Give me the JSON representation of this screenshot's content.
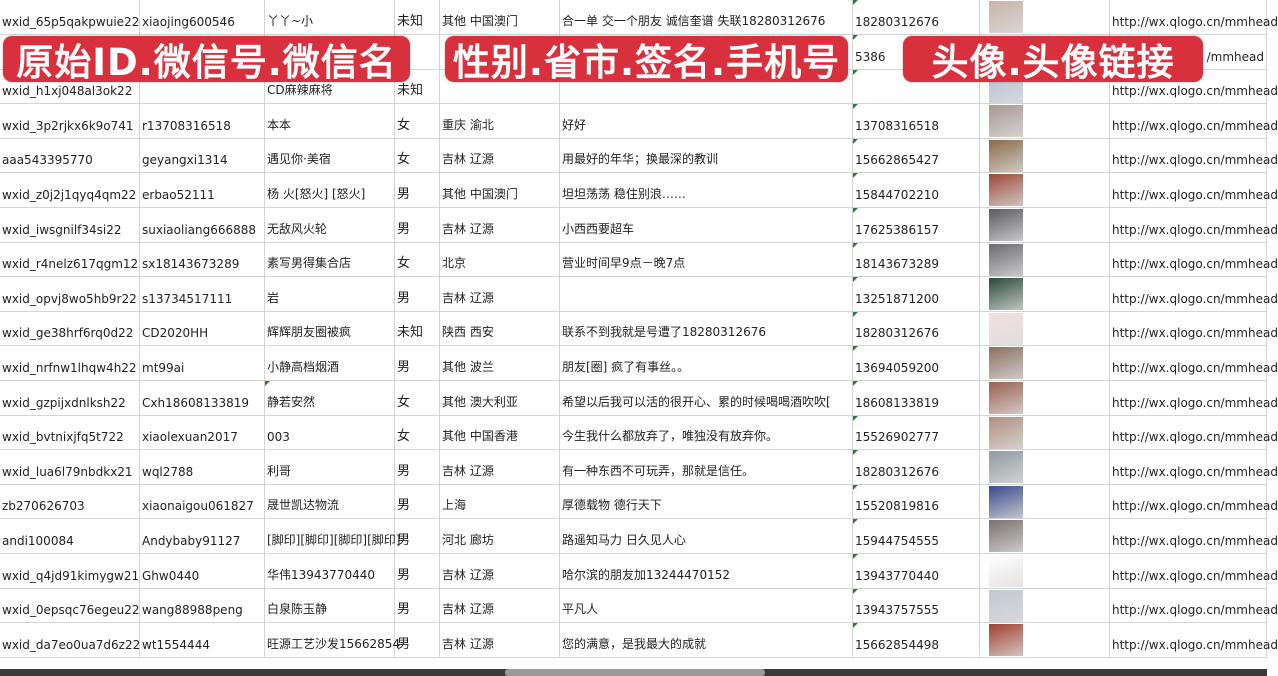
{
  "banners": [
    "原始ID.微信号.微信名",
    "性别.省市.签名.手机号",
    "头像.头像链接"
  ],
  "rows": [
    {
      "id": "wxid_65p5qakpwuie22",
      "wechat": "xiaojing600546",
      "name": "丫丫~小",
      "gender": "未知",
      "region": "其他 中国澳门",
      "signature": "合一单 交一个朋友 诚信奎谱 失联18280312676",
      "phone": "18280312676",
      "avatar_color": "#c9b3a8",
      "link": "http://wx.qlogo.cn/mmhead"
    },
    {
      "id": "",
      "wechat": "",
      "name": "",
      "gender": "",
      "region": "",
      "signature": "",
      "phone": "5386",
      "avatar_color": "#4a5a8a",
      "link": "/mmhead"
    },
    {
      "id": "wxid_h1xj048al3ok22",
      "wechat": "",
      "name": "CD麻辣麻将",
      "gender": "未知",
      "region": "",
      "signature": "",
      "phone": "",
      "avatar_color": "#b8c0d0",
      "link": "http://wx.qlogo.cn/mmhead"
    },
    {
      "id": "wxid_3p2rjkx6k9o741",
      "wechat": "r13708316518",
      "name": "本本",
      "gender": "女",
      "region": "重庆 渝北",
      "signature": "好好",
      "phone": "13708316518",
      "avatar_color": "#a89890",
      "link": "http://wx.qlogo.cn/mmhead"
    },
    {
      "id": "aaa543395770",
      "wechat": "geyangxi1314",
      "name": "遇见你·美宿",
      "gender": "女",
      "region": "吉林 辽源",
      "signature": "用最好的年华；换最深的教训",
      "phone": "15662865427",
      "avatar_color": "#8a6a4a",
      "link": "http://wx.qlogo.cn/mmhead"
    },
    {
      "id": "wxid_z0j2j1qyq4qm22",
      "wechat": "erbao52111",
      "name": "杨 火[怒火] [怒火]",
      "gender": "男",
      "region": "其他 中国澳门",
      "signature": "坦坦荡荡 稳住别浪……",
      "phone": "15844702210",
      "avatar_color": "#9a4a3a",
      "link": "http://wx.qlogo.cn/mmhead"
    },
    {
      "id": "wxid_iwsgnilf34si22",
      "wechat": "suxiaoliang666888",
      "name": "无敌风火轮",
      "gender": "男",
      "region": "吉林 辽源",
      "signature": "小西西要超车",
      "phone": "17625386157",
      "avatar_color": "#5a5a60",
      "link": "http://wx.qlogo.cn/mmhead"
    },
    {
      "id": "wxid_r4nelz617qgm12",
      "wechat": "sx18143673289",
      "name": "素写男得集合店",
      "gender": "女",
      "region": "北京",
      "signature": "营业时间早9点－晚7点",
      "phone": "18143673289",
      "avatar_color": "#6a6a70",
      "link": "http://wx.qlogo.cn/mmhead"
    },
    {
      "id": "wxid_opvj8wo5hb9r22",
      "wechat": "s13734517111",
      "name": "岩",
      "gender": "男",
      "region": "吉林 辽源",
      "signature": "",
      "phone": "13251871200",
      "avatar_color": "#2a4a3a",
      "link": "http://wx.qlogo.cn/mmhead"
    },
    {
      "id": "wxid_ge38hrf6rq0d22",
      "wechat": "CD2020HH",
      "name": "辉辉朋友圈被疯",
      "gender": "未知",
      "region": "陕西 西安",
      "signature": "联系不到我就是号遭了18280312676",
      "phone": "18280312676",
      "avatar_color": "#f2e0e0",
      "link": "http://wx.qlogo.cn/mmhead"
    },
    {
      "id": "wxid_nrfnw1lhqw4h22",
      "wechat": "mt99ai",
      "name": "小静高档烟酒",
      "gender": "男",
      "region": "其他 波兰",
      "signature": "朋友[圈] 疯了有事丝。。",
      "phone": "13694059200",
      "avatar_color": "#8a7060",
      "link": "http://wx.qlogo.cn/mmhead"
    },
    {
      "id": "wxid_gzpijxdnlksh22",
      "wechat": "Cxh18608133819",
      "name": "静若安然",
      "gender": "女",
      "region": "其他 澳大利亚",
      "signature": "希望以后我可以活的很开心、累的时候喝喝酒吹吹[",
      "phone": "18608133819",
      "avatar_color": "#9a6050",
      "link": "http://wx.qlogo.cn/mmhead"
    },
    {
      "id": "wxid_bvtnixjfq5t722",
      "wechat": "xiaolexuan2017",
      "name": "003",
      "gender": "女",
      "region": "其他 中国香港",
      "signature": "今生我什么都放弃了，唯独没有放弃你。",
      "phone": "15526902777",
      "avatar_color": "#b09080",
      "link": "http://wx.qlogo.cn/mmhead"
    },
    {
      "id": "wxid_lua6l79nbdkx21",
      "wechat": "wql2788",
      "name": "利哥",
      "gender": "男",
      "region": "吉林 辽源",
      "signature": "有一种东西不可玩弄，那就是信任。",
      "phone": "18280312676",
      "avatar_color": "#909aa0",
      "link": "http://wx.qlogo.cn/mmhead"
    },
    {
      "id": "zb270626703",
      "wechat": "xiaonaigou061827",
      "name": "晟世凯达物流",
      "gender": "男",
      "region": "上海",
      "signature": "厚德载物 德行天下",
      "phone": "15520819816",
      "avatar_color": "#3a4a8a",
      "link": "http://wx.qlogo.cn/mmhead"
    },
    {
      "id": "andi100084",
      "wechat": "Andybaby91127",
      "name": "[脚印][脚印][脚印][脚印]",
      "gender": "男",
      "region": "河北 廊坊",
      "signature": "路遥知马力 日久见人心",
      "phone": "15944754555",
      "avatar_color": "#7a7070",
      "link": "http://wx.qlogo.cn/mmhead"
    },
    {
      "id": "wxid_q4jd91kimygw21",
      "wechat": "Ghw0440",
      "name": "华伟13943770440",
      "gender": "男",
      "region": "吉林 辽源",
      "signature": "哈尔滨的朋友加13244470152",
      "phone": "13943770440",
      "avatar_color": "#ffffff",
      "link": "http://wx.qlogo.cn/mmhead"
    },
    {
      "id": "wxid_0epsqc76egeu22",
      "wechat": "wang88988peng",
      "name": "白泉陈玉静",
      "gender": "男",
      "region": "吉林 辽源",
      "signature": "平凡人",
      "phone": "13943757555",
      "avatar_color": "#c0c8d0",
      "link": "http://wx.qlogo.cn/mmhead"
    },
    {
      "id": "wxid_da7eo0ua7d6z22",
      "wechat": "wt1554444",
      "name": "旺源工艺沙发15662854",
      "gender": "男",
      "region": "吉林 辽源",
      "signature": "您的满意，是我最大的成就",
      "phone": "15662854498",
      "avatar_color": "#a04030",
      "link": "http://wx.qlogo.cn/mmhead"
    }
  ]
}
